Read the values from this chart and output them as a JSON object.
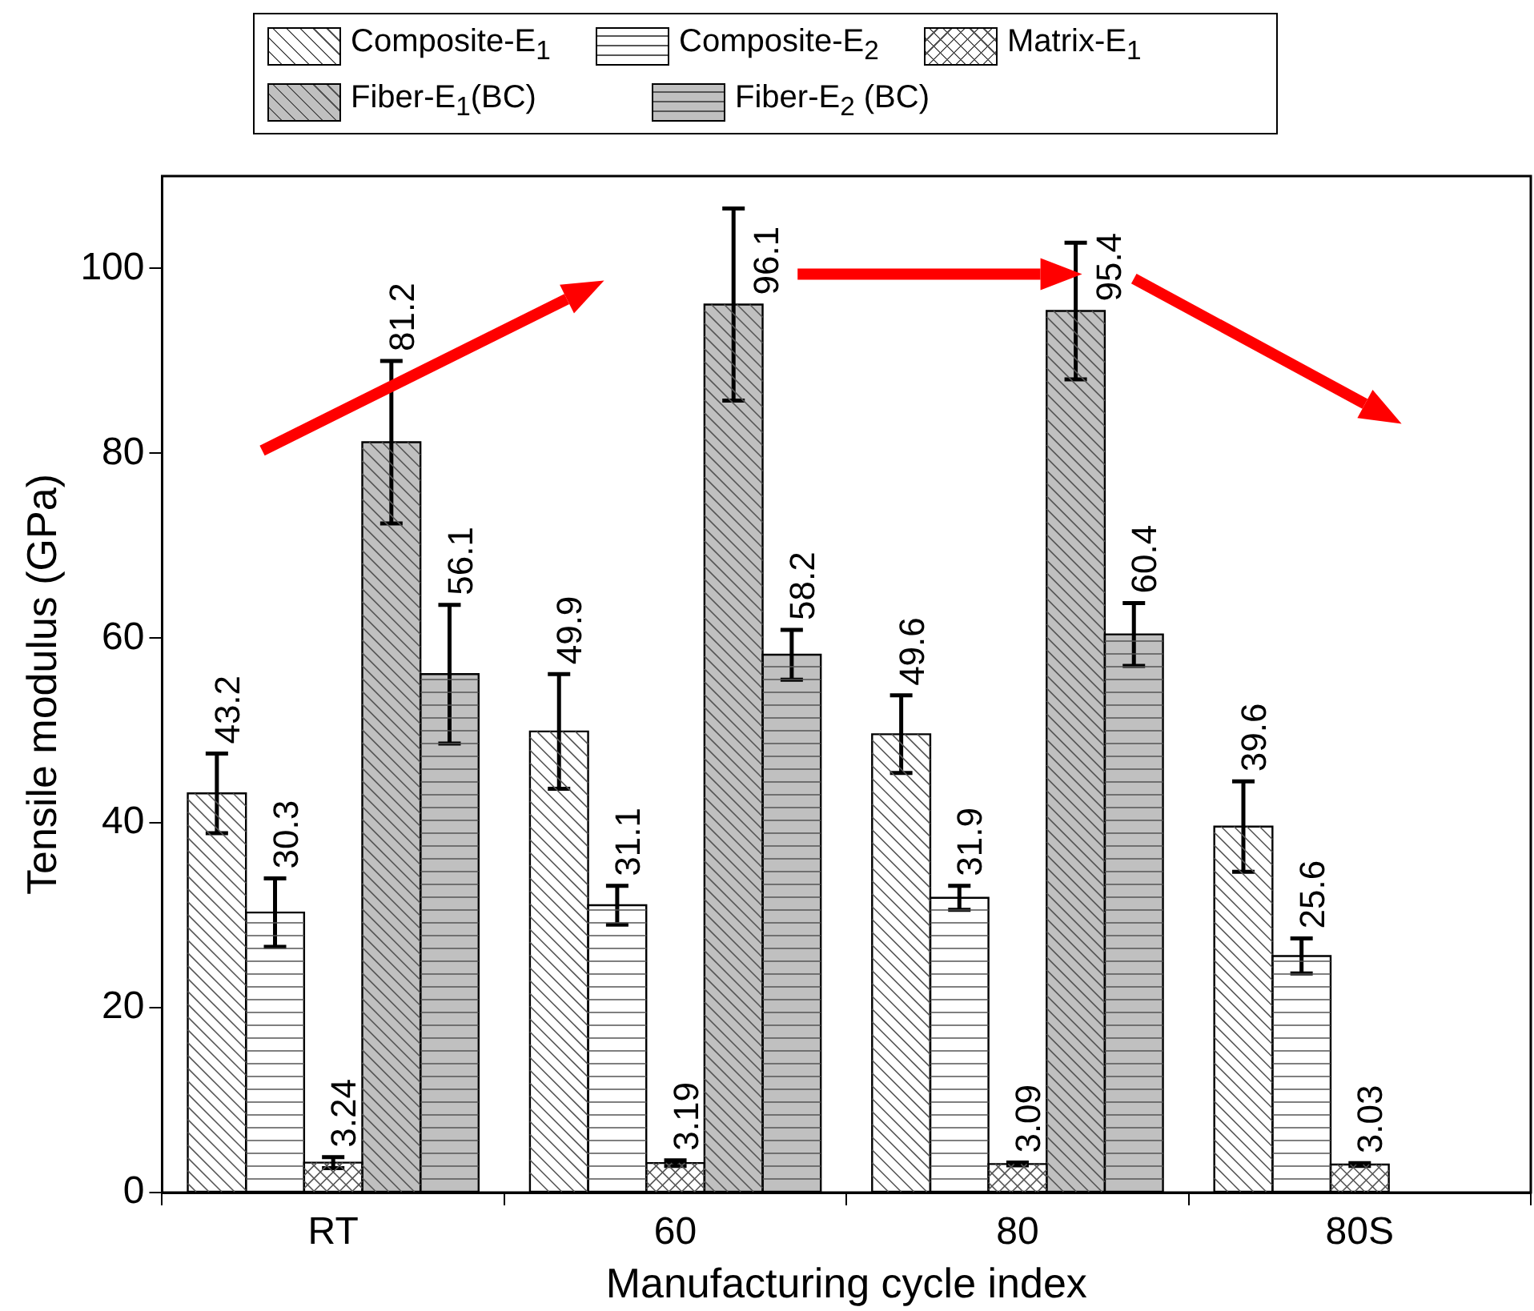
{
  "chart_data": {
    "type": "bar",
    "xlabel": "Manufacturing cycle index",
    "ylabel": "Tensile modulus (GPa)",
    "categories": [
      "RT",
      "60",
      "80",
      "80S"
    ],
    "ylim": [
      0,
      110
    ],
    "yticks": [
      0,
      20,
      40,
      60,
      80,
      100
    ],
    "legend": "top",
    "data_labels": true,
    "series": [
      {
        "name": "Composite-E$_{1}$",
        "color": "#ffffff",
        "values": [
          43.2,
          49.9,
          49.6,
          39.6
        ],
        "errors": [
          4.3,
          6.2,
          4.2,
          4.9
        ]
      },
      {
        "name": "Composite-E$_{2}$",
        "color": "#ffffff",
        "values": [
          30.3,
          31.1,
          31.9,
          25.6
        ],
        "errors": [
          3.7,
          2.1,
          1.3,
          1.9
        ]
      },
      {
        "name": "Matrix-E$_{1}$",
        "color": "#ffffff",
        "values": [
          3.24,
          3.19,
          3.09,
          3.03
        ],
        "errors": [
          0.6,
          0.3,
          0.15,
          0.15
        ]
      },
      {
        "name": "Fiber-E$_{1}$(BC)",
        "color": "#c0c0c0",
        "values": [
          81.2,
          96.1,
          95.4,
          null
        ],
        "errors": [
          8.8,
          10.4,
          7.4,
          null
        ]
      },
      {
        "name": "Fiber-E$_{2}$ (BC)",
        "color": "#c0c0c0",
        "values": [
          56.1,
          58.2,
          60.4,
          null
        ],
        "errors": [
          7.5,
          2.7,
          3.4,
          null
        ]
      }
    ]
  }
}
